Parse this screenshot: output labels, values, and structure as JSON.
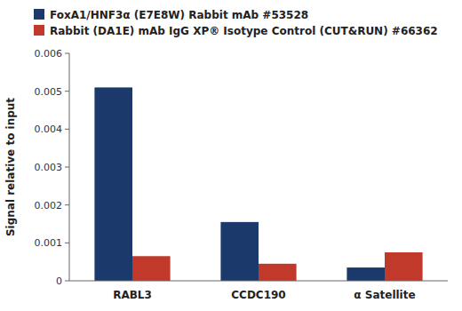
{
  "chart_data": {
    "type": "bar",
    "ylabel": "Signal relative to input",
    "categories": [
      "RABL3",
      "CCDC190",
      "α Satellite"
    ],
    "series": [
      {
        "name": "FoxA1/HNF3α (E7E8W) Rabbit mAb #53528",
        "color": "#1B3A6B",
        "values": [
          0.0051,
          0.00155,
          0.00035
        ]
      },
      {
        "name": "Rabbit (DA1E) mAb IgG XP® Isotype Control (CUT&RUN) #66362",
        "color": "#C0392B",
        "values": [
          0.00065,
          0.00045,
          0.00075
        ]
      }
    ],
    "ylim": [
      0,
      0.006
    ],
    "yticks": [
      0,
      0.001,
      0.002,
      0.003,
      0.004,
      0.005,
      0.006
    ],
    "grid": false,
    "legend": "top"
  }
}
